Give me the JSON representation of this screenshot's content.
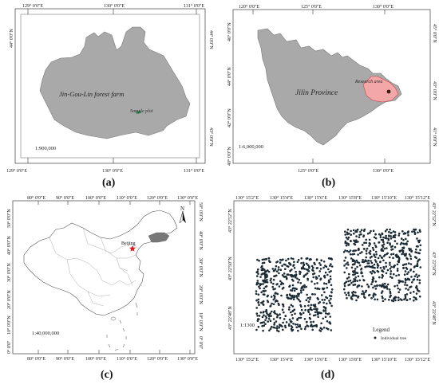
{
  "panels": {
    "a": {
      "caption": "(a)",
      "top_ticks": [
        "129° 0'0\"E",
        "130° 0'0\"E",
        "131° 0'0\"E"
      ],
      "bottom_ticks": [
        "129° 0'0\"E",
        "130° 0'0\"E",
        "131° 0'0\"E"
      ],
      "left_ticks": [
        "44° 0'0\"N"
      ],
      "right_ticks": [
        "44° 0'0\"N",
        "43° 0'0\"N"
      ],
      "area_label": "Jin-Gou-Lin forest farm",
      "plot_label": "Sample plot",
      "scale": "1:900,000",
      "colors": {
        "land": "#a9a9a9",
        "plot": "#f1a3a6"
      }
    },
    "b": {
      "caption": "(b)",
      "top_ticks": [
        "120° 0'0\"E",
        "125° 0'0\"E",
        "130° 0'0\"E"
      ],
      "bottom_ticks": [
        "125° 0'0\"E",
        "130° 0'0\"E"
      ],
      "left_ticks": [
        "46° 0'0\"N",
        "44° 0'0\"N",
        "42° 0'0\"N",
        "40° 0'0\"N"
      ],
      "right_ticks": [
        "45° 0'0\"N",
        "43° 0'0\"N",
        "41° 0'0\"N"
      ],
      "area_label": "Jilin Province",
      "region_label": "Research area",
      "scale": "1:6,000,000",
      "colors": {
        "land": "#a9a9a9",
        "region": "#f4a7a9"
      }
    },
    "c": {
      "caption": "(c)",
      "top_ticks": [
        "80° 0'0\"E",
        "90° 0'0\"E",
        "100° 0'0\"E",
        "110° 0'0\"E",
        "120° 0'0\"E",
        "130° 0'0\"E"
      ],
      "bottom_ticks": [
        "80° 0'0\"E",
        "90° 0'0\"E",
        "100° 0'0\"E",
        "110° 0'0\"E",
        "120° 0'0\"E",
        "130° 0'0\"E"
      ],
      "left_ticks": [
        "50° 0'0\"N",
        "40° 0'0\"N",
        "30° 0'0\"N",
        "20° 0'0\"N",
        "10° 0'0\"N",
        "0° 0'0\""
      ],
      "right_ticks": [
        "50° 0'0\"N",
        "40° 0'0\"N",
        "30° 0'0\"N",
        "20° 0'0\"N",
        "10° 0'0\"N",
        "0° 0'0\""
      ],
      "city_label": "Beijing",
      "north_label": "N",
      "scale": "1:40,000,000",
      "colors": {
        "highlight": "#777777",
        "star": "#d9201c"
      }
    },
    "d": {
      "caption": "(d)",
      "top_ticks": [
        "130° 15'2\"E",
        "130° 15'4\"E",
        "130° 15'6\"E",
        "130° 15'8\"E",
        "130° 15'10\"E",
        "130° 15'12\"E"
      ],
      "bottom_ticks": [
        "130° 15'2\"E",
        "130° 15'4\"E",
        "130° 15'6\"E",
        "130° 15'8\"E",
        "130° 15'10\"E",
        "130° 15'12\"E"
      ],
      "left_ticks": [
        "43° 22'52\"N",
        "43° 22'50\"N",
        "43° 22'48\"N"
      ],
      "right_ticks": [
        "43° 22'52\"N",
        "43° 22'50\"N",
        "43° 22'48\"N"
      ],
      "scale": "1:1300",
      "legend_title": "Legend",
      "legend_item": "Individual tree",
      "colors": {
        "tree": "#1b2a33"
      }
    }
  }
}
